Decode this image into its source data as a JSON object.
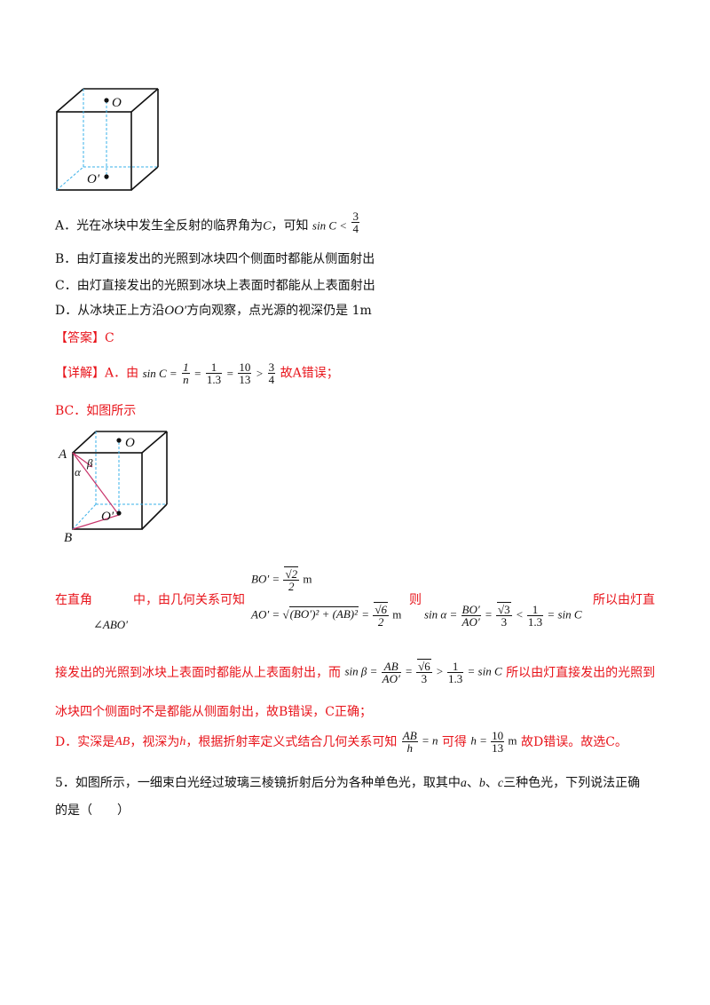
{
  "figure1": {
    "label_O": "O",
    "label_O_prime": "O′"
  },
  "options": {
    "A_prefix": "A．光在冰块中发生全反射的临界角为",
    "A_C": "C",
    "A_mid": "，可知",
    "A_sinC": "sin C <",
    "A_num": "3",
    "A_den": "4",
    "B": "B．由灯直接发出的光照到冰块四个侧面时都能从侧面射出",
    "C": "C．由灯直接发出的光照到冰块上表面时都能从上表面射出",
    "D_prefix": "D．从冰块正上方沿",
    "D_OO": "OO′",
    "D_suffix": "方向观察，点光源的视深仍是 1m"
  },
  "answer": {
    "label": "【答案】",
    "value": "C"
  },
  "detail": {
    "label": "【详解】",
    "A_lead": "A．由",
    "A_sinC": "sin C =",
    "f1_num": "1",
    "f1_den": "n",
    "eq1": "=",
    "f2_num": "1",
    "f2_den": "1.3",
    "eq2": "=",
    "f3_num": "10",
    "f3_den": "13",
    "gt": ">",
    "f4_num": "3",
    "f4_den": "4",
    "A_tail": "故A错误；",
    "BC_lead": "BC．如图所示"
  },
  "figure2": {
    "label_A": "A",
    "label_B": "B",
    "label_O": "O",
    "label_O_prime": "O′",
    "label_alpha": "α",
    "label_beta": "β"
  },
  "para1": {
    "lead": "在直角",
    "angle": "∠ABO′",
    "mid": "中，由几何关系可知",
    "bo_lhs": "BO′ =",
    "bo_num": "√2",
    "bo_den": "2",
    "bo_unit": "m",
    "ao_lhs": "AO′ =",
    "ao_root": "(BO′)² + (AB)²",
    "ao_eq": "=",
    "ao_num": "√6",
    "ao_den": "2",
    "ao_unit": "m",
    "then": "则",
    "sa_lhs": "sin α =",
    "sa_num": "BO′",
    "sa_den": "AO′",
    "sa_eq": "=",
    "sa_v_num": "√3",
    "sa_v_den": "3",
    "sa_lt": "<",
    "sa_c_num": "1",
    "sa_c_den": "1.3",
    "sa_tail": "= sin C",
    "tail": "所以由灯直"
  },
  "para2": {
    "lead": "接发出的光照到冰块上表面时都能从上表面射出，而",
    "sb_lhs": "sin β =",
    "sb_num": "AB",
    "sb_den": "AO′",
    "sb_eq": "=",
    "sb_v_num": "√6",
    "sb_v_den": "3",
    "sb_gt": ">",
    "sb_c_num": "1",
    "sb_c_den": "1.3",
    "sb_tail": "= sin C",
    "tail": "所以由灯直接发出的光照到"
  },
  "para3": "冰块四个侧面时不是都能从侧面射出，故B错误，C正确；",
  "para4": {
    "lead": "D．实深是",
    "AB": "AB",
    "mid1": "，视深为",
    "h": "h",
    "mid2": "，根据折射率定义式结合几何关系可知",
    "f_num": "AB",
    "f_den": "h",
    "f_eq": "= n",
    "mid3": "可得",
    "h_lhs": "h =",
    "h_num": "10",
    "h_den": "13",
    "h_unit": "m",
    "tail": "故D错误。故选C。"
  },
  "q5": {
    "line1_a": "5．如图所示，一细束白光经过玻璃三棱镜折射后分为各种单色光，取其中",
    "a": "a",
    "sep1": "、",
    "b": "b",
    "sep2": "、",
    "c": "c",
    "line1_b": "三种色光，下列说法正确",
    "line2": "的是（　　）"
  }
}
